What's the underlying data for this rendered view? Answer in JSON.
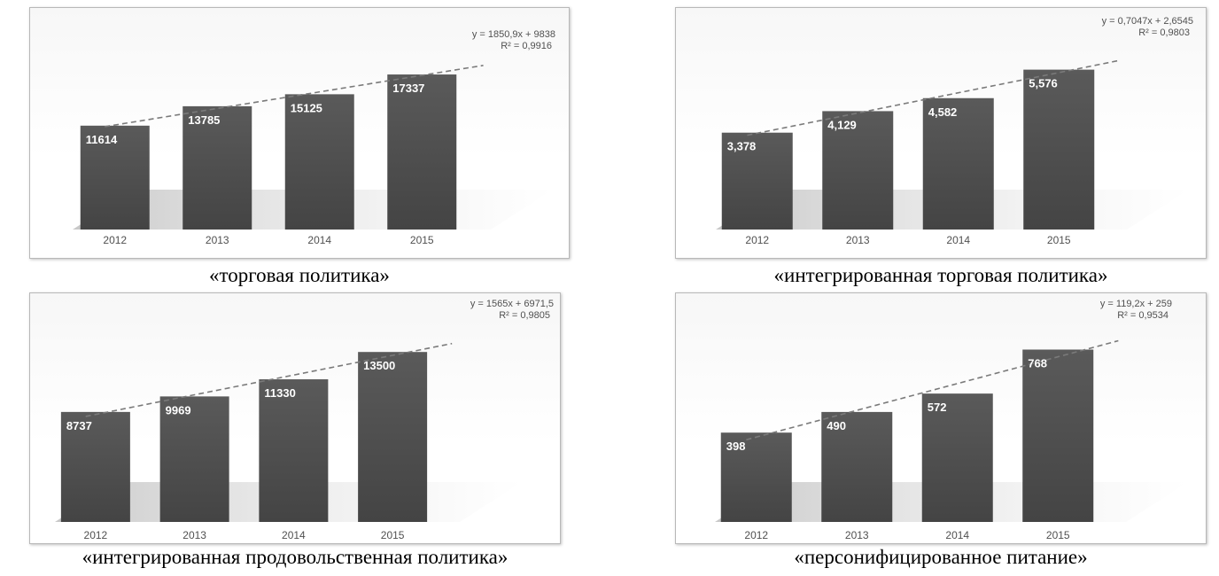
{
  "colors": {
    "bar": "#505050",
    "trend": "#7a7a7a",
    "frame": "#b8b8b8"
  },
  "chart_data": [
    {
      "type": "bar",
      "caption": "«торговая политика»",
      "categories": [
        "2012",
        "2013",
        "2014",
        "2015"
      ],
      "values": [
        11614,
        13785,
        15125,
        17337
      ],
      "value_labels": [
        "11614",
        "13785",
        "15125",
        "17337"
      ],
      "trendline": {
        "type": "linear",
        "equation": "y = 1850,9x + 9838",
        "r2": "R² = 0,9916",
        "slope": 1850.9,
        "intercept": 9838
      },
      "ylim": [
        0,
        22000
      ],
      "grid": false,
      "legend": "none"
    },
    {
      "type": "bar",
      "caption": "«интегрированная торговая политика»",
      "categories": [
        "2012",
        "2013",
        "2014",
        "2015"
      ],
      "values": [
        3.378,
        4.129,
        4.582,
        5.576
      ],
      "value_labels": [
        "3,378",
        "4,129",
        "4,582",
        "5,576"
      ],
      "trendline": {
        "type": "linear",
        "equation": "y = 0,7047x + 2,6545",
        "r2": "R² = 0,9803",
        "slope": 0.7047,
        "intercept": 2.6545
      },
      "ylim": [
        0,
        6.8
      ],
      "grid": false,
      "legend": "none"
    },
    {
      "type": "bar",
      "caption": "«интегрированная продовольственная политика»",
      "categories": [
        "2012",
        "2013",
        "2014",
        "2015"
      ],
      "values": [
        8737,
        9969,
        11330,
        13500
      ],
      "value_labels": [
        "8737",
        "9969",
        "11330",
        "13500"
      ],
      "trendline": {
        "type": "linear",
        "equation": "y = 1565x + 6971,5",
        "r2": "R² = 0,9805",
        "slope": 1565,
        "intercept": 6971.5
      },
      "ylim": [
        0,
        16400
      ],
      "grid": false,
      "legend": "none"
    },
    {
      "type": "bar",
      "caption": "«персонифицированное питание»",
      "categories": [
        "2012",
        "2013",
        "2014",
        "2015"
      ],
      "values": [
        398,
        490,
        572,
        768
      ],
      "value_labels": [
        "398",
        "490",
        "572",
        "768"
      ],
      "trendline": {
        "type": "linear",
        "equation": "y = 119,2x + 259",
        "r2": "R² = 0,9534",
        "slope": 119.2,
        "intercept": 259
      },
      "ylim": [
        0,
        920
      ],
      "grid": false,
      "legend": "none"
    }
  ]
}
